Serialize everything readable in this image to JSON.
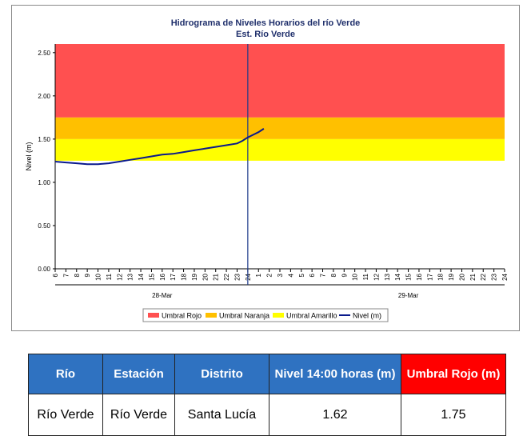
{
  "chart_data": {
    "type": "line",
    "title": "Hidrograma de Niveles Horarios del río Verde",
    "subtitle": "Est. Río Verde",
    "ylabel": "Nivel (m)",
    "ylim": [
      0,
      2.6
    ],
    "y_ticks": [
      "0.00",
      "0.50",
      "1.00",
      "1.50",
      "2.00",
      "2.50"
    ],
    "x_tick_labels": [
      "6",
      "7",
      "8",
      "9",
      "10",
      "11",
      "12",
      "13",
      "14",
      "15",
      "16",
      "17",
      "18",
      "19",
      "20",
      "21",
      "22",
      "23",
      "24",
      "1",
      "2",
      "3",
      "4",
      "5",
      "6",
      "7",
      "8",
      "9",
      "10",
      "11",
      "12",
      "13",
      "14",
      "15",
      "16",
      "17",
      "18",
      "19",
      "20",
      "21",
      "22",
      "23",
      "24"
    ],
    "date_labels": [
      {
        "label": "28-Mar",
        "hour_index": 10
      },
      {
        "label": "29-Mar",
        "hour_index": 33
      }
    ],
    "vertical_marker_hour_index": 18,
    "bands": [
      {
        "name": "Umbral Rojo",
        "from": 1.75,
        "to": 2.6,
        "color": "#ff5050"
      },
      {
        "name": "Umbral Naranja",
        "from": 1.5,
        "to": 1.75,
        "color": "#ffc000"
      },
      {
        "name": "Umbral Amarillo",
        "from": 1.25,
        "to": 1.5,
        "color": "#ffff00"
      }
    ],
    "series": [
      {
        "name": "Nivel (m)",
        "color": "#0a1a8c",
        "hour_index": [
          0,
          2,
          4,
          6,
          8,
          10,
          12,
          14,
          16,
          18,
          20,
          22,
          24,
          26,
          28,
          30,
          32,
          34,
          35,
          36,
          37,
          38,
          39,
          40,
          41,
          42,
          43,
          44,
          45,
          46,
          47,
          48,
          49,
          50,
          51,
          52,
          53,
          54
        ],
        "values": [
          1.24,
          1.23,
          1.22,
          1.21,
          1.21,
          1.22,
          1.24,
          1.26,
          1.28,
          1.3,
          1.32,
          1.33,
          1.35,
          1.37,
          1.39,
          1.41,
          1.43,
          1.45,
          1.48,
          1.52,
          1.55,
          1.58,
          1.62,
          null,
          null,
          null,
          null,
          null,
          null,
          null,
          null,
          null,
          null,
          null,
          null,
          null,
          null,
          null
        ]
      }
    ],
    "legend": [
      "Umbral Rojo",
      "Umbral Naranja",
      "Umbral Amarillo",
      "Nivel (m)"
    ],
    "legend_position": "bottom"
  },
  "table": {
    "headers": [
      "Río",
      "Estación",
      "Distrito",
      "Nivel 14:00 horas (m)",
      "Umbral Rojo (m)"
    ],
    "row": [
      "Río Verde",
      "Río Verde",
      "Santa Lucía",
      "1.62",
      "1.75"
    ]
  }
}
